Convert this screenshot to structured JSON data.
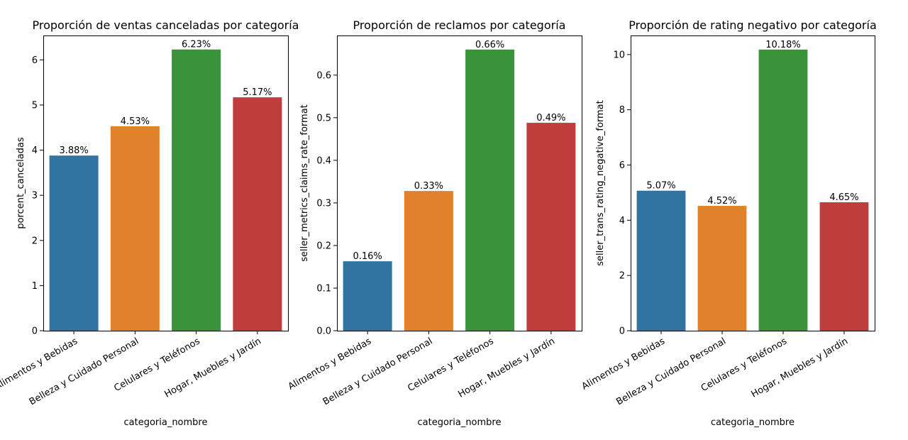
{
  "colors": {
    "bars": [
      "#3274a1",
      "#e1812c",
      "#3a923a",
      "#c03d3e"
    ],
    "axis": "#000000",
    "background": "#ffffff"
  },
  "chart_data": [
    {
      "type": "bar",
      "title": "Proporción de ventas canceladas por categoría",
      "xlabel": "categoria_nombre",
      "ylabel": "porcent_canceladas",
      "categories": [
        "Alimentos y Bebidas",
        "Belleza y Cuidado Personal",
        "Celulares y Teléfonos",
        "Hogar, Muebles y Jardín"
      ],
      "values": [
        3.88,
        4.53,
        6.23,
        5.17
      ],
      "value_labels": [
        "3.88%",
        "4.53%",
        "6.23%",
        "5.17%"
      ],
      "ylim": [
        0,
        6.54
      ],
      "yticks": [
        0,
        1,
        2,
        3,
        4,
        5,
        6
      ],
      "ytick_labels": [
        "0",
        "1",
        "2",
        "3",
        "4",
        "5",
        "6"
      ],
      "grid": false,
      "legend": "none"
    },
    {
      "type": "bar",
      "title": "Proporción de reclamos por categoría",
      "xlabel": "categoria_nombre",
      "ylabel": "seller_metrics_claims_rate_format",
      "categories": [
        "Alimentos y Bebidas",
        "Belleza y Cuidado Personal",
        "Celulares y Teléfonos",
        "Hogar, Muebles y Jardín"
      ],
      "values": [
        0.163,
        0.328,
        0.66,
        0.488
      ],
      "value_labels": [
        "0.16%",
        "0.33%",
        "0.66%",
        "0.49%"
      ],
      "ylim": [
        0,
        0.693
      ],
      "yticks": [
        0,
        0.1,
        0.2,
        0.3,
        0.4,
        0.5,
        0.6
      ],
      "ytick_labels": [
        "0.0",
        "0.1",
        "0.2",
        "0.3",
        "0.4",
        "0.5",
        "0.6"
      ],
      "grid": false,
      "legend": "none"
    },
    {
      "type": "bar",
      "title": "Proporción de rating negativo por categoría",
      "xlabel": "categoria_nombre",
      "ylabel": "seller_trans_rating_negative_format",
      "categories": [
        "Alimentos y Bebidas",
        "Belleza y Cuidado Personal",
        "Celulares y Teléfonos",
        "Hogar, Muebles y Jardín"
      ],
      "values": [
        5.07,
        4.52,
        10.18,
        4.65
      ],
      "value_labels": [
        "5.07%",
        "4.52%",
        "10.18%",
        "4.65%"
      ],
      "ylim": [
        0,
        10.69
      ],
      "yticks": [
        0,
        2,
        4,
        6,
        8,
        10
      ],
      "ytick_labels": [
        "0",
        "2",
        "4",
        "6",
        "8",
        "10"
      ],
      "grid": false,
      "legend": "none"
    }
  ]
}
